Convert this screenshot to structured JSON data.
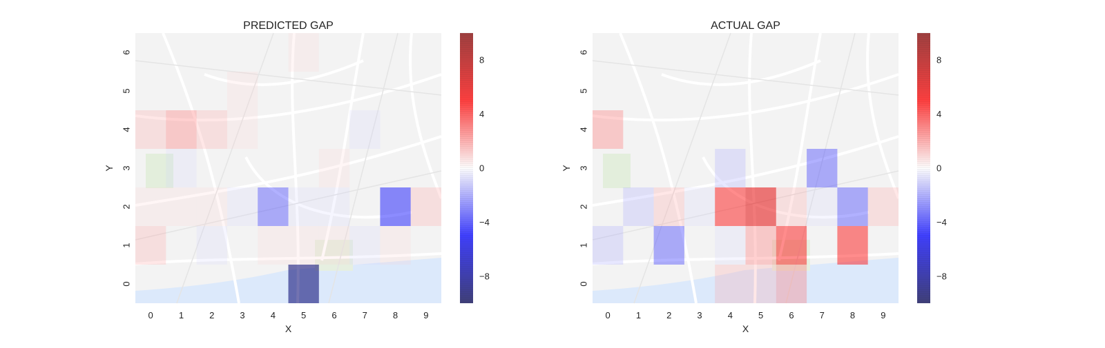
{
  "chart_data": [
    {
      "type": "heatmap",
      "title": "PREDICTED GAP",
      "xlabel": "X",
      "ylabel": "Y",
      "x_ticks": [
        "0",
        "1",
        "2",
        "3",
        "4",
        "5",
        "6",
        "7",
        "8",
        "9"
      ],
      "y_ticks": [
        "0",
        "1",
        "2",
        "3",
        "4",
        "5",
        "6"
      ],
      "colorbar": {
        "ticks": [
          "8",
          "4",
          "0",
          "−4",
          "−8"
        ],
        "tick_values": [
          8,
          4,
          0,
          -4,
          -8
        ],
        "range": [
          -10,
          10
        ],
        "colormap": "seismic"
      },
      "background": "street map",
      "values": [
        [
          0,
          0,
          0,
          0,
          0,
          -9,
          0,
          0,
          0,
          0
        ],
        [
          2,
          0,
          -1,
          0,
          1,
          1,
          1,
          -1,
          1,
          0
        ],
        [
          1,
          1,
          1,
          -1,
          -4,
          -1,
          -1,
          0,
          -5,
          2
        ],
        [
          0,
          -1,
          0,
          0,
          0,
          0,
          1,
          0,
          0,
          0
        ],
        [
          2,
          3,
          2,
          1,
          0,
          0,
          0,
          -1,
          0,
          0
        ],
        [
          0,
          0,
          0,
          1,
          0,
          0,
          0,
          0,
          0,
          0
        ],
        [
          0,
          0,
          0,
          0,
          0,
          1,
          0,
          0,
          0,
          0
        ]
      ]
    },
    {
      "type": "heatmap",
      "title": "ACTUAL GAP",
      "xlabel": "X",
      "ylabel": "Y",
      "x_ticks": [
        "0",
        "1",
        "2",
        "3",
        "4",
        "5",
        "6",
        "7",
        "8",
        "9"
      ],
      "y_ticks": [
        "0",
        "1",
        "2",
        "3",
        "4",
        "5",
        "6"
      ],
      "colorbar": {
        "ticks": [
          "8",
          "4",
          "0",
          "−4",
          "−8"
        ],
        "tick_values": [
          8,
          4,
          0,
          -4,
          -8
        ],
        "range": [
          -10,
          10
        ],
        "colormap": "seismic"
      },
      "background": "street map",
      "values": [
        [
          0,
          0,
          0,
          0,
          2,
          2,
          3,
          0,
          0,
          0
        ],
        [
          -2,
          0,
          -4,
          0,
          -1,
          3,
          5,
          0,
          5,
          0
        ],
        [
          0,
          -2,
          2,
          -1,
          5,
          6,
          2,
          -1,
          -4,
          2
        ],
        [
          0,
          0,
          0,
          0,
          -2,
          0,
          0,
          -4,
          0,
          0
        ],
        [
          3,
          0,
          0,
          0,
          0,
          0,
          0,
          0,
          0,
          0
        ],
        [
          0,
          0,
          0,
          0,
          0,
          0,
          0,
          0,
          0,
          0
        ],
        [
          0,
          0,
          0,
          0,
          0,
          0,
          0,
          0,
          0,
          0
        ]
      ]
    }
  ]
}
